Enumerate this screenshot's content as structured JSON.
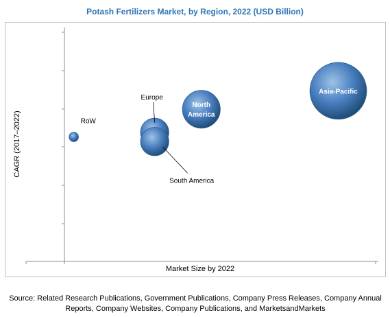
{
  "chart_data": {
    "type": "bubble",
    "title": "Potash Fertilizers Market, by Region, 2022 (USD Billion)",
    "xlabel": "Market Size by 2022",
    "ylabel": "CAGR (2017–2022)",
    "xlim": [
      0,
      10
    ],
    "ylim": [
      0,
      10
    ],
    "grid": false,
    "legend": "none",
    "series": [
      {
        "name": "RoW",
        "x": 0.3,
        "y": 5.4,
        "size": 0.6,
        "label_style": "callout",
        "label": "RoW"
      },
      {
        "name": "Europe",
        "x": 2.9,
        "y": 5.6,
        "size": 1.8,
        "label_style": "callout",
        "label": "Europe"
      },
      {
        "name": "South America",
        "x": 2.9,
        "y": 5.2,
        "size": 1.8,
        "label_style": "callout",
        "label": "South America"
      },
      {
        "name": "North America",
        "x": 4.4,
        "y": 6.6,
        "size": 2.4,
        "label_style": "inside",
        "label": "North\nAmerica"
      },
      {
        "name": "Asia-Pacific",
        "x": 8.8,
        "y": 7.4,
        "size": 3.6,
        "label_style": "inside",
        "label": "Asia-Pacific"
      }
    ]
  },
  "source": "Source: Related Research Publications, Government Publications, Company Press Releases, Company Annual Reports, Company Websites, Company Publications, and MarketsandMarkets",
  "colors": {
    "title": "#2e75b6",
    "bubble_light": "#9dc3e6",
    "bubble_dark": "#1f4e79"
  }
}
